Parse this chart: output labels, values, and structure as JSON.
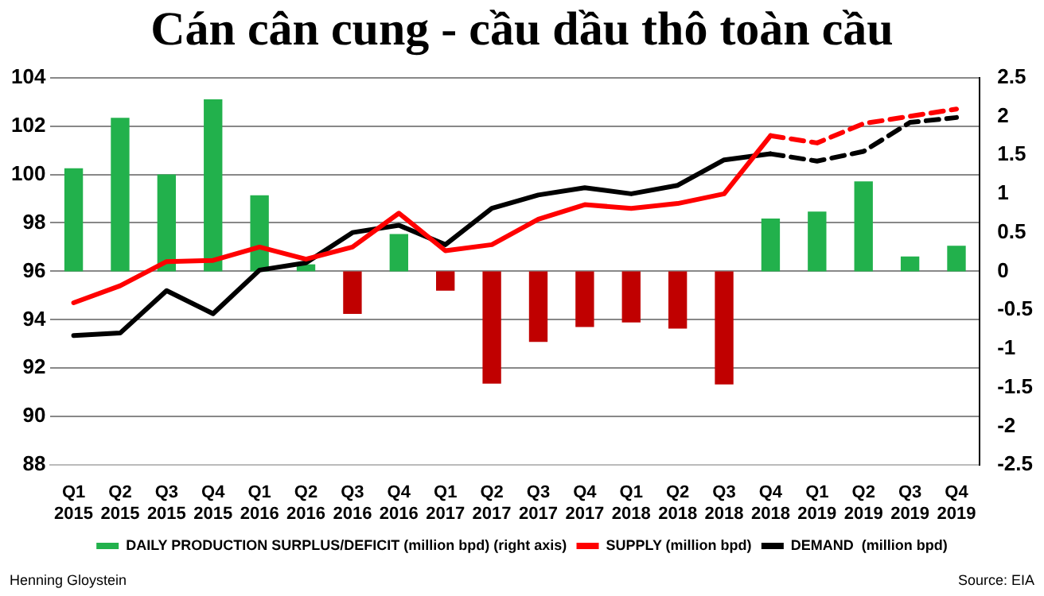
{
  "chart_data": {
    "type": "bar",
    "title": "Cán cân cung - cầu dầu thô toàn cầu",
    "categories": [
      "Q1 2015",
      "Q2 2015",
      "Q3 2015",
      "Q4 2015",
      "Q1 2016",
      "Q2 2016",
      "Q3 2016",
      "Q4 2016",
      "Q1 2017",
      "Q2 2017",
      "Q3 2017",
      "Q4 2017",
      "Q1 2018",
      "Q2 2018",
      "Q3 2018",
      "Q4 2018",
      "Q1 2019",
      "Q2 2019",
      "Q3 2019",
      "Q4 2019"
    ],
    "series": [
      {
        "name": "DAILY PRODUCTION SURPLUS/DEFICIT (million bpd) (right axis)",
        "axis": "y2",
        "color": "#22b14c",
        "colors": [
          "#22b14c",
          "#22b14c",
          "#22b14c",
          "#22b14c",
          "#22b14c",
          "#22b14c",
          "#c00000",
          "#22b14c",
          "#c00000",
          "#c00000",
          "#c00000",
          "#c00000",
          "#c00000",
          "#c00000",
          "#c00000",
          "#22b14c",
          "#22b14c",
          "#22b14c",
          "#22b14c",
          "#22b14c"
        ],
        "values": [
          1.33,
          1.98,
          1.25,
          2.22,
          0.98,
          0.09,
          -0.55,
          0.48,
          -0.25,
          -1.45,
          -0.91,
          -0.72,
          -0.66,
          -0.74,
          -1.46,
          0.68,
          0.77,
          1.16,
          0.19,
          0.33
        ]
      },
      {
        "name": "SUPPLY (million bpd)",
        "type": "line",
        "color": "#ff0000",
        "line_style": "solid",
        "values": [
          94.7,
          95.4,
          96.4,
          96.45,
          97.0,
          96.5,
          97.0,
          98.4,
          96.85,
          97.1,
          98.15,
          98.75,
          98.6,
          98.8,
          99.2,
          101.6,
          null,
          null,
          null,
          null
        ]
      },
      {
        "name": "DEMAND  (million bpd)",
        "type": "line",
        "color": "#000000",
        "line_style": "solid",
        "values": [
          93.35,
          93.45,
          95.2,
          94.25,
          96.05,
          96.35,
          97.6,
          97.9,
          97.1,
          98.6,
          99.15,
          99.45,
          99.2,
          99.55,
          100.6,
          100.85,
          null,
          null,
          null,
          null
        ]
      },
      {
        "type": "line",
        "color": "#ff0000",
        "line_style": "dashed",
        "values": [
          null,
          null,
          null,
          null,
          null,
          null,
          null,
          null,
          null,
          null,
          null,
          null,
          null,
          null,
          null,
          101.6,
          101.3,
          102.1,
          102.4,
          102.7
        ]
      },
      {
        "type": "line",
        "color": "#000000",
        "line_style": "dashed",
        "values": [
          null,
          null,
          null,
          null,
          null,
          null,
          null,
          null,
          null,
          null,
          null,
          null,
          null,
          null,
          null,
          100.85,
          100.55,
          100.95,
          102.15,
          102.35
        ]
      }
    ],
    "ylim": [
      88,
      104
    ],
    "yticks": [
      88,
      90,
      92,
      94,
      96,
      98,
      100,
      102,
      104
    ],
    "y2lim": [
      -2.5,
      2.5
    ],
    "y2ticks": [
      -2.5,
      -2,
      -1.5,
      -1,
      -0.5,
      0,
      0.5,
      1,
      1.5,
      2,
      2.5
    ],
    "grid": "y",
    "legend": "bottom",
    "marker": "none",
    "annotations": [
      "Henning Gloystein",
      "Source: EIA"
    ]
  }
}
